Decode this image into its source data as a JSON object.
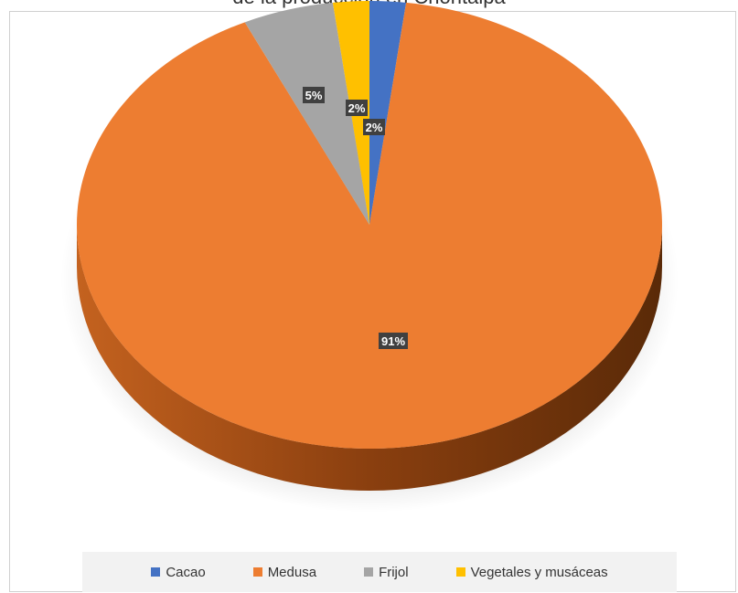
{
  "chart_data": {
    "type": "pie",
    "title": "de la producción en Chontalpa",
    "categories": [
      "Cacao",
      "Medusa",
      "Frijol",
      "Vegetales y musáceas"
    ],
    "values": [
      2,
      91,
      5,
      2
    ],
    "labels": [
      "2%",
      "91%",
      "5%",
      "2%"
    ],
    "colors": [
      "#4472C4",
      "#ED7D31",
      "#A5A5A5",
      "#FFC000"
    ],
    "legend_position": "bottom",
    "style": "3d"
  }
}
